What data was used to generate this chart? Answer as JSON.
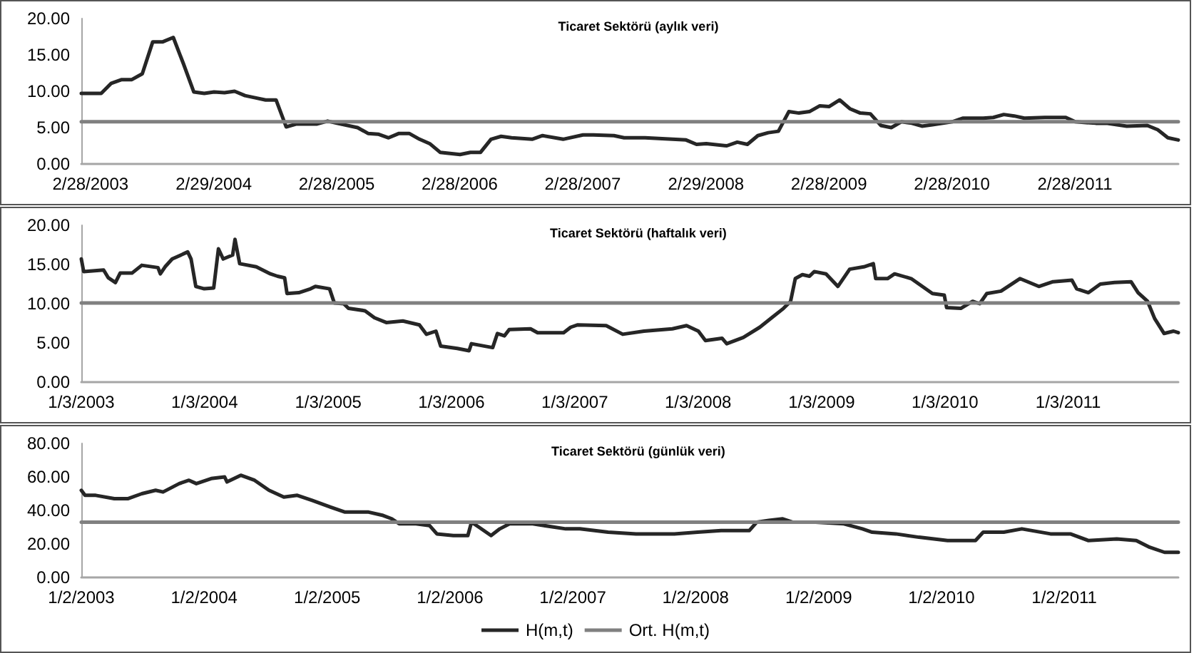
{
  "chart_data": [
    {
      "type": "line",
      "title": "Ticaret Sektörü (aylık veri)",
      "legend": false,
      "grid": false,
      "marker": "none",
      "line_style": "solid",
      "xlim": [
        "2003-02",
        "2012-01"
      ],
      "ylim": [
        0,
        20
      ],
      "yticks": [
        {
          "value": 0,
          "label": "0.00"
        },
        {
          "value": 5,
          "label": "5.00"
        },
        {
          "value": 10,
          "label": "10.00"
        },
        {
          "value": 15,
          "label": "15.00"
        },
        {
          "value": 20,
          "label": "20.00"
        }
      ],
      "xticks": [
        {
          "value": "2003-02-28",
          "label": "2/28/2003"
        },
        {
          "value": "2004-02-29",
          "label": "2/29/2004"
        },
        {
          "value": "2005-02-28",
          "label": "2/28/2005"
        },
        {
          "value": "2006-02-28",
          "label": "2/28/2006"
        },
        {
          "value": "2007-02-28",
          "label": "2/28/2007"
        },
        {
          "value": "2008-02-29",
          "label": "2/29/2008"
        },
        {
          "value": "2009-02-28",
          "label": "2/28/2009"
        },
        {
          "value": "2010-02-28",
          "label": "2/28/2010"
        },
        {
          "value": "2011-02-28",
          "label": "2/28/2011"
        }
      ],
      "series": [
        {
          "color": "#262626",
          "x": [
            "2003-02",
            "2003-04",
            "2003-05",
            "2003-06",
            "2003-07",
            "2003-08",
            "2003-09",
            "2003-10",
            "2003-11",
            "2003-12",
            "2004-01",
            "2004-02",
            "2004-03",
            "2004-04",
            "2004-05",
            "2004-06",
            "2004-07",
            "2004-08",
            "2004-09",
            "2004-10",
            "2004-11",
            "2005-01",
            "2005-02",
            "2005-03",
            "2005-05",
            "2005-06",
            "2005-07",
            "2005-08",
            "2005-09",
            "2005-10",
            "2005-11",
            "2005-12",
            "2006-01",
            "2006-03",
            "2006-04",
            "2006-05",
            "2006-06",
            "2006-07",
            "2006-08",
            "2006-10",
            "2006-11",
            "2007-01",
            "2007-03",
            "2007-04",
            "2007-06",
            "2007-07",
            "2007-09",
            "2008-01",
            "2008-02",
            "2008-03",
            "2008-05",
            "2008-06",
            "2008-07",
            "2008-08",
            "2008-09",
            "2008-10",
            "2008-11",
            "2008-12",
            "2009-01",
            "2009-02",
            "2009-03",
            "2009-04",
            "2009-05",
            "2009-06",
            "2009-07",
            "2009-08",
            "2009-09",
            "2009-10",
            "2009-11",
            "2009-12",
            "2010-01",
            "2010-03",
            "2010-04",
            "2010-06",
            "2010-07",
            "2010-08",
            "2010-09",
            "2010-10",
            "2010-12",
            "2011-01",
            "2011-02",
            "2011-03",
            "2011-05",
            "2011-06",
            "2011-08",
            "2011-10",
            "2011-11",
            "2011-12",
            "2012-01"
          ],
          "values": [
            9.7,
            9.7,
            11.1,
            11.6,
            11.6,
            12.4,
            16.8,
            16.8,
            17.4,
            13.8,
            9.9,
            9.7,
            9.9,
            9.8,
            10.0,
            9.4,
            9.1,
            8.8,
            8.8,
            5.1,
            5.5,
            5.5,
            5.9,
            5.6,
            5.0,
            4.2,
            4.1,
            3.6,
            4.2,
            4.2,
            3.4,
            2.8,
            1.6,
            1.3,
            1.6,
            1.6,
            3.4,
            3.8,
            3.6,
            3.4,
            3.9,
            3.4,
            4.0,
            4.0,
            3.9,
            3.6,
            3.6,
            3.3,
            2.7,
            2.8,
            2.5,
            3.0,
            2.7,
            3.9,
            4.3,
            4.5,
            7.2,
            7.0,
            7.2,
            8.0,
            7.9,
            8.8,
            7.6,
            7.0,
            6.9,
            5.3,
            5.0,
            5.8,
            5.6,
            5.2,
            5.4,
            5.8,
            6.3,
            6.3,
            6.4,
            6.8,
            6.6,
            6.3,
            6.4,
            6.4,
            6.4,
            5.8,
            5.6,
            5.6,
            5.2,
            5.3,
            4.7,
            3.6,
            3.3
          ]
        },
        {
          "color": "#808080",
          "x": [
            "2003-02",
            "2012-01"
          ],
          "values": [
            5.8,
            5.8
          ]
        }
      ]
    },
    {
      "type": "line",
      "title": "Ticaret Sektörü (haftalık veri)",
      "legend": false,
      "grid": false,
      "marker": "none",
      "line_style": "solid",
      "xlim": [
        "2003-01-03",
        "2011-11-25"
      ],
      "ylim": [
        0,
        20
      ],
      "yticks": [
        {
          "value": 0,
          "label": "0.00"
        },
        {
          "value": 5,
          "label": "5.00"
        },
        {
          "value": 10,
          "label": "10.00"
        },
        {
          "value": 15,
          "label": "15.00"
        },
        {
          "value": 20,
          "label": "20.00"
        }
      ],
      "xticks": [
        {
          "value": "2003-01-03",
          "label": "1/3/2003"
        },
        {
          "value": "2004-01-03",
          "label": "1/3/2004"
        },
        {
          "value": "2005-01-03",
          "label": "1/3/2005"
        },
        {
          "value": "2006-01-03",
          "label": "1/3/2006"
        },
        {
          "value": "2007-01-03",
          "label": "1/3/2007"
        },
        {
          "value": "2008-01-03",
          "label": "1/3/2008"
        },
        {
          "value": "2009-01-03",
          "label": "1/3/2009"
        },
        {
          "value": "2010-01-03",
          "label": "1/3/2010"
        },
        {
          "value": "2011-01-03",
          "label": "1/3/2011"
        }
      ],
      "series": [
        {
          "color": "#262626",
          "x": [
            "2003-01-03",
            "2003-01-10",
            "2003-03-10",
            "2003-03-24",
            "2003-04-14",
            "2003-04-28",
            "2003-06-02",
            "2003-07-01",
            "2003-08-18",
            "2003-08-25",
            "2003-09-08",
            "2003-09-29",
            "2003-11-14",
            "2003-11-24",
            "2003-12-08",
            "2004-01-02",
            "2004-01-30",
            "2004-02-13",
            "2004-02-27",
            "2004-03-26",
            "2004-04-02",
            "2004-04-16",
            "2004-06-04",
            "2004-07-16",
            "2004-08-06",
            "2004-08-27",
            "2004-09-03",
            "2004-10-08",
            "2004-11-12",
            "2004-11-26",
            "2005-01-07",
            "2005-01-21",
            "2005-02-18",
            "2005-03-04",
            "2005-04-22",
            "2005-05-20",
            "2005-06-24",
            "2005-08-12",
            "2005-09-30",
            "2005-10-21",
            "2005-11-18",
            "2005-12-02",
            "2006-01-20",
            "2006-02-24",
            "2006-03-03",
            "2006-05-05",
            "2006-05-19",
            "2006-06-09",
            "2006-06-23",
            "2006-08-25",
            "2006-09-15",
            "2006-12-01",
            "2006-12-22",
            "2007-01-12",
            "2007-04-06",
            "2007-05-25",
            "2007-07-27",
            "2007-10-19",
            "2007-11-30",
            "2008-01-04",
            "2008-01-25",
            "2008-03-14",
            "2008-03-28",
            "2008-05-16",
            "2008-07-04",
            "2008-08-08",
            "2008-09-12",
            "2008-10-03",
            "2008-10-17",
            "2008-11-07",
            "2008-11-28",
            "2008-12-12",
            "2009-01-16",
            "2009-02-20",
            "2009-03-27",
            "2009-05-08",
            "2009-06-05",
            "2009-06-12",
            "2009-07-17",
            "2009-08-07",
            "2009-09-25",
            "2009-11-27",
            "2010-01-01",
            "2010-01-08",
            "2010-02-19",
            "2010-03-26",
            "2010-04-16",
            "2010-05-07",
            "2010-06-18",
            "2010-08-13",
            "2010-10-08",
            "2010-11-19",
            "2011-01-14",
            "2011-01-28",
            "2011-03-04",
            "2011-04-08",
            "2011-05-20",
            "2011-07-08",
            "2011-07-29",
            "2011-08-26",
            "2011-09-16",
            "2011-10-14",
            "2011-11-11",
            "2011-11-25"
          ],
          "values": [
            15.7,
            14.1,
            14.3,
            13.3,
            12.7,
            13.9,
            13.9,
            14.9,
            14.6,
            13.8,
            14.7,
            15.7,
            16.6,
            15.7,
            12.2,
            11.9,
            12.0,
            17.0,
            15.7,
            16.2,
            18.2,
            15.1,
            14.7,
            13.8,
            13.5,
            13.3,
            11.3,
            11.4,
            11.9,
            12.2,
            11.9,
            10.1,
            10.0,
            9.4,
            9.1,
            8.2,
            7.6,
            7.8,
            7.3,
            6.1,
            6.5,
            4.6,
            4.3,
            4.0,
            4.9,
            4.4,
            6.2,
            5.9,
            6.7,
            6.8,
            6.3,
            6.3,
            7.0,
            7.3,
            7.2,
            6.1,
            6.5,
            6.8,
            7.2,
            6.5,
            5.3,
            5.6,
            4.9,
            5.7,
            7.0,
            8.2,
            9.4,
            10.3,
            13.2,
            13.7,
            13.5,
            14.1,
            13.8,
            12.2,
            14.4,
            14.7,
            15.1,
            13.2,
            13.2,
            13.8,
            13.2,
            11.3,
            11.1,
            9.5,
            9.4,
            10.3,
            10.0,
            11.3,
            11.6,
            13.2,
            12.2,
            12.8,
            13.0,
            11.9,
            11.4,
            12.5,
            12.7,
            12.8,
            11.4,
            10.3,
            8.1,
            6.2,
            6.5,
            6.3
          ]
        },
        {
          "color": "#808080",
          "x": [
            "2003-01-03",
            "2011-11-25"
          ],
          "values": [
            10.1,
            10.1
          ]
        }
      ]
    },
    {
      "type": "line",
      "title": "Ticaret Sektörü (günlük veri)",
      "legend": "bottom",
      "grid": false,
      "marker": "none",
      "line_style": "solid",
      "xlim": [
        "2003-01-02",
        "2011-12-07"
      ],
      "ylim": [
        0,
        80
      ],
      "yticks": [
        {
          "value": 0,
          "label": "0.00"
        },
        {
          "value": 20,
          "label": "20.00"
        },
        {
          "value": 40,
          "label": "40.00"
        },
        {
          "value": 60,
          "label": "60.00"
        },
        {
          "value": 80,
          "label": "80.00"
        }
      ],
      "xticks": [
        {
          "value": "2003-01-02",
          "label": "1/2/2003"
        },
        {
          "value": "2004-01-02",
          "label": "1/2/2004"
        },
        {
          "value": "2005-01-02",
          "label": "1/2/2005"
        },
        {
          "value": "2006-01-02",
          "label": "1/2/2006"
        },
        {
          "value": "2007-01-02",
          "label": "1/2/2007"
        },
        {
          "value": "2008-01-02",
          "label": "1/2/2008"
        },
        {
          "value": "2009-01-02",
          "label": "1/2/2009"
        },
        {
          "value": "2010-01-02",
          "label": "1/2/2010"
        },
        {
          "value": "2011-01-02",
          "label": "1/2/2011"
        }
      ],
      "series": [
        {
          "name": "H(m,t)",
          "color": "#262626",
          "x": [
            "2003-01-02",
            "2003-01-13",
            "2003-02-14",
            "2003-04-10",
            "2003-05-20",
            "2003-07-01",
            "2003-08-11",
            "2003-09-02",
            "2003-10-20",
            "2003-11-18",
            "2003-12-10",
            "2004-01-23",
            "2004-03-03",
            "2004-03-10",
            "2004-04-20",
            "2004-05-31",
            "2004-07-13",
            "2004-08-26",
            "2004-10-05",
            "2004-11-18",
            "2005-01-12",
            "2005-02-24",
            "2005-05-05",
            "2005-06-17",
            "2005-07-13",
            "2005-08-04",
            "2005-09-23",
            "2005-11-02",
            "2005-11-24",
            "2006-01-12",
            "2006-02-24",
            "2006-03-07",
            "2006-03-29",
            "2006-05-04",
            "2006-05-30",
            "2006-06-28",
            "2006-09-05",
            "2006-12-12",
            "2007-01-23",
            "2007-04-17",
            "2007-07-09",
            "2007-10-31",
            "2008-01-08",
            "2008-03-18",
            "2008-06-10",
            "2008-07-02",
            "2008-08-07",
            "2008-09-17",
            "2008-10-16",
            "2008-12-24",
            "2009-03-18",
            "2009-05-12",
            "2009-06-10",
            "2009-08-19",
            "2009-10-27",
            "2010-01-20",
            "2010-04-13",
            "2010-05-06",
            "2010-07-06",
            "2010-08-29",
            "2010-11-22",
            "2011-01-20",
            "2011-03-15",
            "2011-06-07",
            "2011-08-04",
            "2011-09-13",
            "2011-10-27",
            "2011-12-07"
          ],
          "values": [
            52,
            49,
            49,
            47,
            47,
            50,
            52,
            51,
            56,
            58,
            56,
            59,
            60,
            57,
            61,
            58,
            52,
            48,
            49,
            46,
            42,
            39,
            39,
            37,
            35,
            32,
            32,
            31,
            26,
            25,
            25,
            33,
            30,
            25,
            29,
            32,
            32,
            29,
            29,
            27,
            26,
            26,
            27,
            28,
            28,
            33,
            34,
            35,
            33,
            33,
            32,
            29,
            27,
            26,
            24,
            22,
            22,
            27,
            27,
            29,
            26,
            26,
            22,
            23,
            22,
            18,
            15,
            15
          ]
        },
        {
          "name": "Ort. H(m,t)",
          "color": "#808080",
          "x": [
            "2003-01-02",
            "2011-12-07"
          ],
          "values": [
            33,
            33
          ]
        }
      ]
    }
  ]
}
